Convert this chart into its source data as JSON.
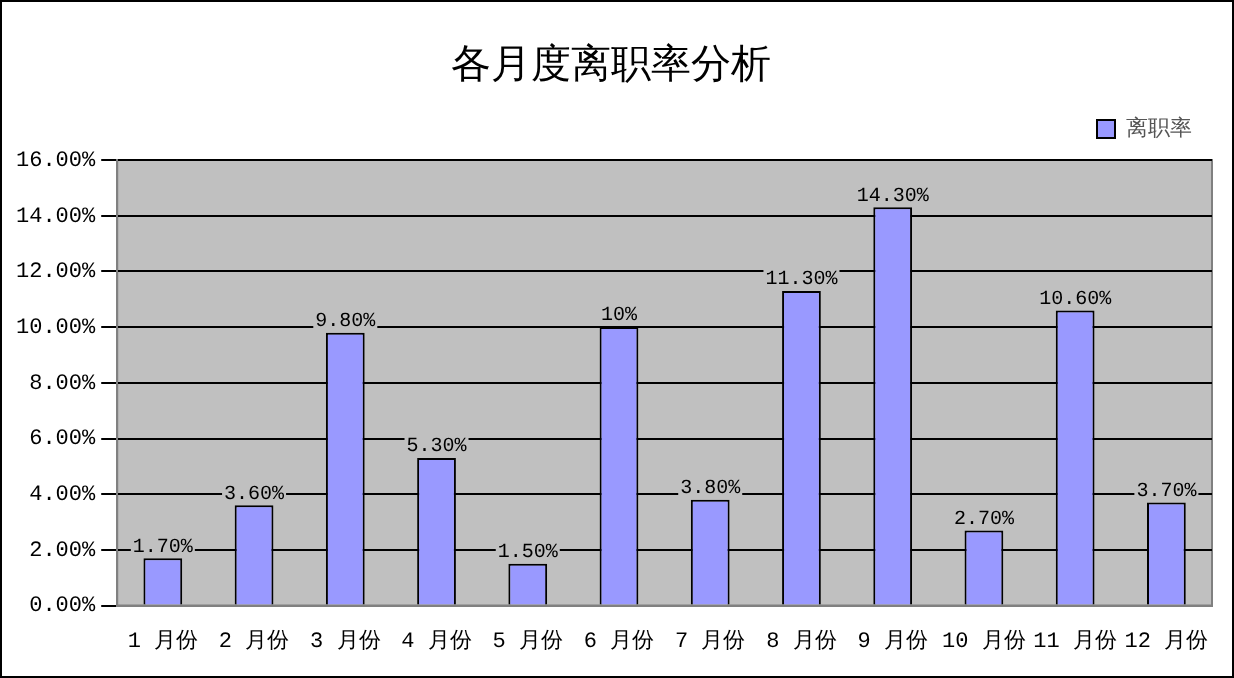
{
  "chart_data": {
    "type": "bar",
    "title": "各月度离职率分析",
    "categories": [
      "1 月份",
      "2 月份",
      "3 月份",
      "4 月份",
      "5 月份",
      "6 月份",
      "7 月份",
      "8 月份",
      "9 月份",
      "10 月份",
      "11 月份",
      "12 月份"
    ],
    "series": [
      {
        "name": "离职率",
        "color": "#9999ff",
        "values": [
          1.7,
          3.6,
          9.8,
          5.3,
          1.5,
          10,
          3.8,
          11.3,
          14.3,
          2.7,
          10.6,
          3.7
        ],
        "value_labels": [
          "1.70%",
          "3.60%",
          "9.80%",
          "5.30%",
          "1.50%",
          "10%",
          "3.80%",
          "11.30%",
          "14.30%",
          "2.70%",
          "10.60%",
          "3.70%"
        ]
      }
    ],
    "ylim": [
      0,
      16
    ],
    "yticks": [
      {
        "value": 0,
        "label": "0.00%"
      },
      {
        "value": 2,
        "label": "2.00%"
      },
      {
        "value": 4,
        "label": "4.00%"
      },
      {
        "value": 6,
        "label": "6.00%"
      },
      {
        "value": 8,
        "label": "8.00%"
      },
      {
        "value": 10,
        "label": "10.00%"
      },
      {
        "value": 12,
        "label": "12.00%"
      },
      {
        "value": 14,
        "label": "14.00%"
      },
      {
        "value": 16,
        "label": "16.00%"
      }
    ],
    "grid": "y",
    "legend": "top right"
  }
}
